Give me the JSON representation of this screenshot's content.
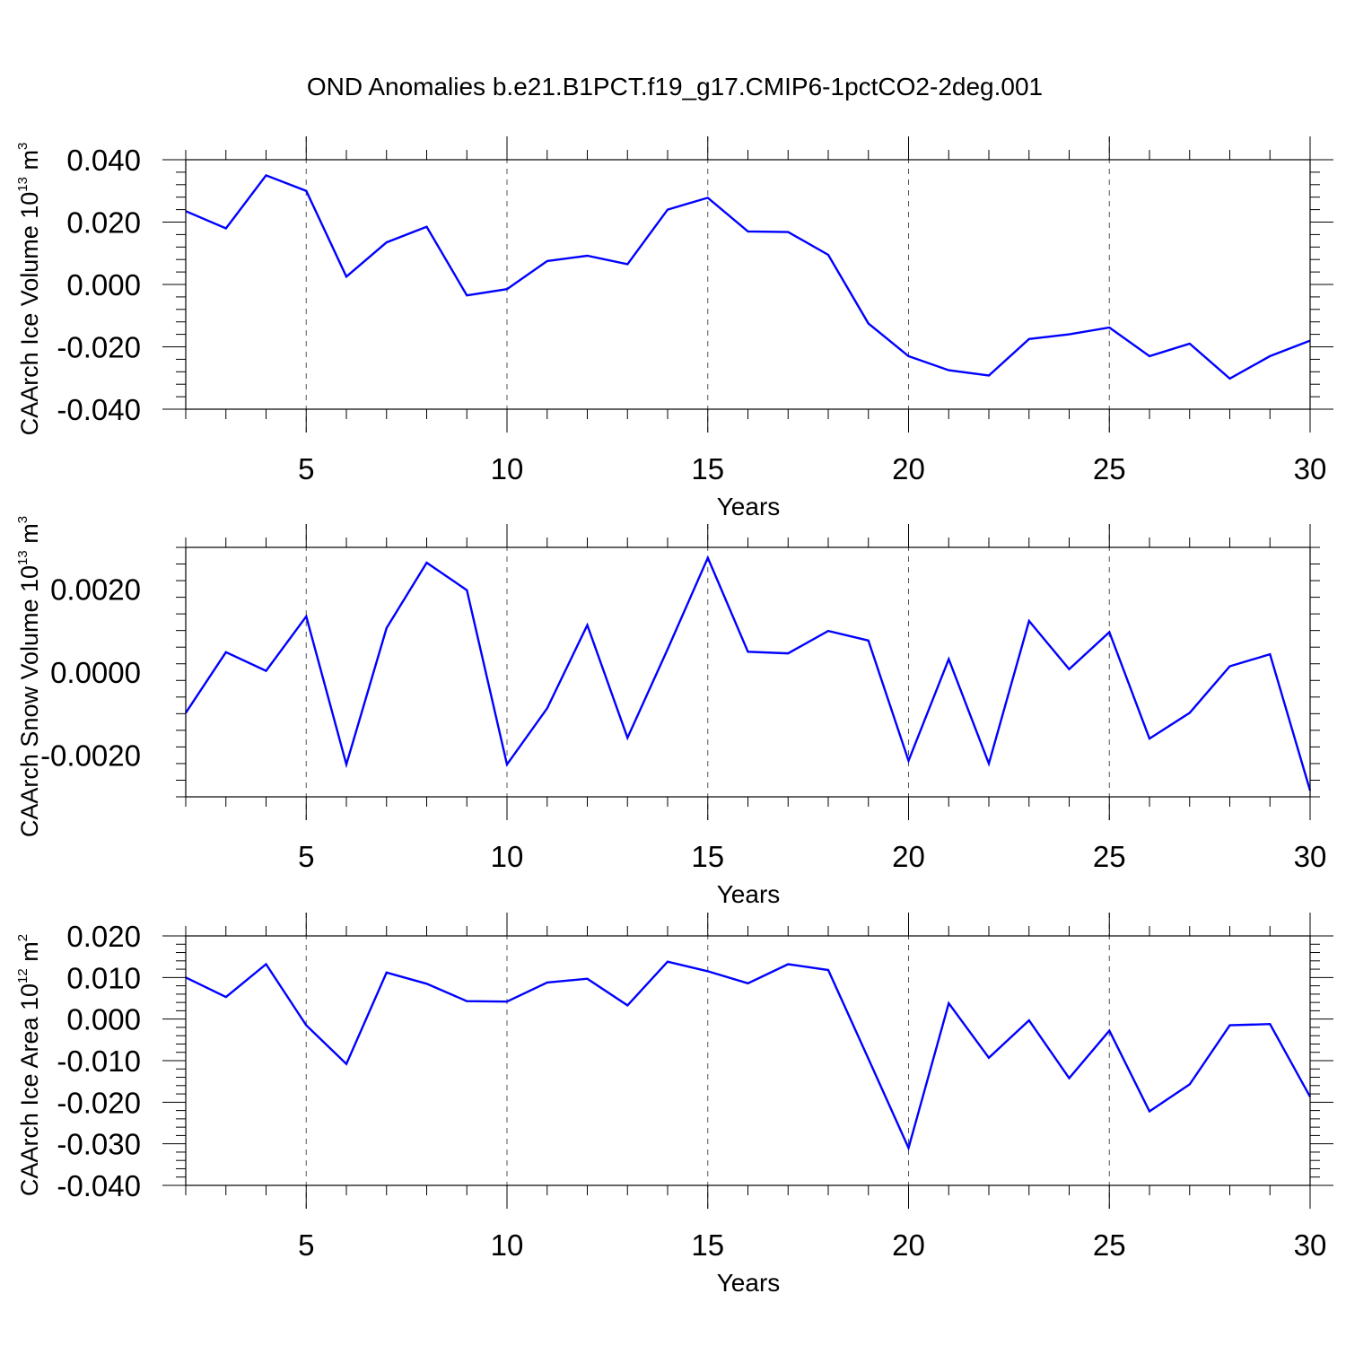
{
  "chart_data": {
    "title": "OND Anomalies b.e21.B1PCT.f19_g17.CMIP6-1pctCO2-2deg.001",
    "line_color": "#0000ff",
    "grid": "dashed vertical lines at major x ticks",
    "panels": [
      {
        "type": "line",
        "ylabel": "CAArch Ice Volume 10",
        "ylabel_exp": "13",
        "ylabel_unit": "m",
        "ylabel_unit_exp": "3",
        "xlabel": "Years",
        "xlim": [
          2,
          30
        ],
        "ylim": [
          -0.04,
          0.04
        ],
        "xticks": [
          5,
          10,
          15,
          20,
          25,
          30
        ],
        "yticks": [
          -0.04,
          -0.02,
          0.0,
          0.02,
          0.04
        ],
        "yticklabels": [
          "-0.040",
          "-0.020",
          "0.000",
          "0.020",
          "0.040"
        ],
        "x": [
          2,
          3,
          4,
          5,
          6,
          7,
          8,
          9,
          10,
          11,
          12,
          13,
          14,
          15,
          16,
          17,
          18,
          19,
          20,
          21,
          22,
          23,
          24,
          25,
          26,
          27,
          28,
          29,
          30
        ],
        "values": [
          0.0235,
          0.018,
          0.035,
          0.03,
          0.0025,
          0.0135,
          0.0185,
          -0.0035,
          -0.0015,
          0.0075,
          0.0092,
          0.0065,
          0.024,
          0.0278,
          0.017,
          0.0168,
          0.0095,
          -0.0125,
          -0.023,
          -0.0275,
          -0.0292,
          -0.0175,
          -0.016,
          -0.0138,
          -0.023,
          -0.019,
          -0.0302,
          -0.023,
          -0.018
        ]
      },
      {
        "type": "line",
        "ylabel": "CAArch Snow Volume 10",
        "ylabel_exp": "13",
        "ylabel_unit": "m",
        "ylabel_unit_exp": "3",
        "xlabel": "Years",
        "xlim": [
          2,
          30
        ],
        "ylim": [
          -0.003,
          0.003
        ],
        "xticks": [
          5,
          10,
          15,
          20,
          25,
          30
        ],
        "yticks": [
          -0.002,
          0.0,
          0.002
        ],
        "yticklabels": [
          "-0.0020",
          "0.0000",
          "0.0020"
        ],
        "x": [
          2,
          3,
          4,
          5,
          6,
          7,
          8,
          9,
          10,
          11,
          12,
          13,
          14,
          15,
          16,
          17,
          18,
          19,
          20,
          21,
          22,
          23,
          24,
          25,
          26,
          27,
          28,
          29,
          30
        ],
        "values": [
          -0.00098,
          0.00048,
          3e-05,
          0.00134,
          -0.00222,
          0.00106,
          0.00263,
          0.00197,
          -0.00222,
          -0.00087,
          0.00113,
          -0.00158,
          0.00055,
          0.00275,
          0.00049,
          0.00045,
          0.00099,
          0.00076,
          -0.00213,
          0.00031,
          -0.0022,
          0.00123,
          7e-05,
          0.00096,
          -0.0016,
          -0.00098,
          0.00014,
          0.00043,
          -0.00285
        ]
      },
      {
        "type": "line",
        "ylabel": "CAArch Ice Area 10",
        "ylabel_exp": "12",
        "ylabel_unit": "m",
        "ylabel_unit_exp": "2",
        "xlabel": "Years",
        "xlim": [
          2,
          30
        ],
        "ylim": [
          -0.04,
          0.02
        ],
        "xticks": [
          5,
          10,
          15,
          20,
          25,
          30
        ],
        "yticks": [
          -0.04,
          -0.03,
          -0.02,
          -0.01,
          0.0,
          0.01,
          0.02
        ],
        "yticklabels": [
          "-0.040",
          "-0.030",
          "-0.020",
          "-0.010",
          "0.000",
          "0.010",
          "0.020"
        ],
        "x": [
          2,
          3,
          4,
          5,
          6,
          7,
          8,
          9,
          10,
          11,
          12,
          13,
          14,
          15,
          16,
          17,
          18,
          19,
          20,
          21,
          22,
          23,
          24,
          25,
          26,
          27,
          28,
          29,
          30
        ],
        "values": [
          0.01,
          0.0053,
          0.0132,
          -0.0015,
          -0.0108,
          0.0112,
          0.0085,
          0.0043,
          0.0042,
          0.0088,
          0.0097,
          0.0033,
          0.0138,
          0.0115,
          0.0086,
          0.0132,
          0.0118,
          -0.0095,
          -0.031,
          0.0038,
          -0.0093,
          -0.0003,
          -0.0142,
          -0.0028,
          -0.0222,
          -0.0157,
          -0.0015,
          -0.0012,
          -0.0187
        ]
      }
    ]
  }
}
